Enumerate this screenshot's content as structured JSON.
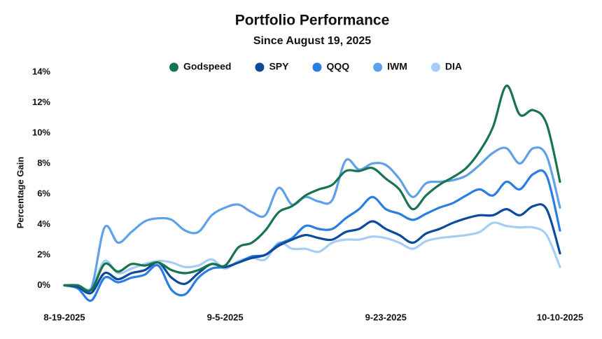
{
  "chart_data": {
    "type": "line",
    "title": "Portfolio Performance",
    "subtitle": "Since August 19, 2025",
    "y_label": "Percentage Gain",
    "categories": [
      "8-19-2025",
      null,
      null,
      null,
      null,
      null,
      null,
      null,
      null,
      null,
      null,
      null,
      "9-5-2025",
      null,
      null,
      null,
      null,
      null,
      null,
      null,
      null,
      null,
      null,
      null,
      "9-23-2025",
      null,
      null,
      null,
      null,
      null,
      null,
      null,
      null,
      null,
      null,
      null,
      null,
      "10-10-2025"
    ],
    "series": [
      {
        "name": "Godspeed",
        "color": "#17744d",
        "values": [
          0,
          0,
          -0.3,
          1.4,
          0.9,
          1.4,
          1.3,
          1.5,
          1.0,
          0.8,
          1.0,
          1.4,
          1.3,
          2.5,
          2.8,
          3.6,
          4.8,
          5.2,
          5.9,
          6.3,
          6.6,
          7.5,
          7.5,
          7.7,
          7.0,
          6.3,
          5.0,
          5.9,
          6.6,
          7.1,
          7.7,
          8.8,
          10.4,
          13.1,
          11.2,
          11.5,
          10.6,
          6.8
        ]
      },
      {
        "name": "SPY",
        "color": "#0b4a9c",
        "values": [
          0,
          -0.1,
          -0.5,
          0.8,
          0.4,
          0.8,
          1.0,
          1.5,
          0.5,
          0.1,
          0.8,
          1.4,
          1.2,
          1.5,
          1.8,
          2.0,
          2.6,
          3.0,
          3.3,
          3.1,
          3.0,
          3.5,
          3.7,
          4.2,
          3.7,
          3.3,
          2.8,
          3.4,
          3.7,
          4.1,
          4.4,
          4.6,
          4.6,
          5.0,
          4.6,
          5.2,
          5.0,
          2.1
        ]
      },
      {
        "name": "QQQ",
        "color": "#2a7de1",
        "values": [
          0,
          -0.2,
          -1.0,
          0.5,
          0.2,
          0.5,
          0.7,
          1.3,
          -0.3,
          -0.6,
          0.5,
          1.1,
          1.2,
          1.5,
          1.9,
          2.0,
          2.7,
          3.1,
          3.9,
          3.7,
          3.7,
          4.4,
          5.0,
          5.8,
          5.0,
          4.7,
          4.3,
          4.7,
          5.1,
          5.4,
          5.9,
          6.3,
          5.9,
          6.8,
          6.3,
          7.3,
          7.2,
          3.6
        ]
      },
      {
        "name": "IWM",
        "color": "#5fa1e8",
        "values": [
          0,
          -0.1,
          -0.2,
          3.8,
          2.8,
          3.5,
          4.2,
          4.4,
          4.3,
          3.6,
          3.5,
          4.6,
          5.1,
          5.3,
          4.8,
          4.6,
          6.4,
          5.3,
          5.8,
          5.5,
          5.6,
          8.2,
          7.6,
          8.0,
          7.9,
          7.0,
          5.8,
          6.7,
          6.8,
          6.9,
          7.2,
          7.9,
          8.7,
          9.0,
          8.0,
          9.0,
          8.5,
          5.1
        ]
      },
      {
        "name": "DIA",
        "color": "#a8cdf4",
        "values": [
          0,
          0,
          -0.2,
          1.6,
          0.8,
          1.1,
          1.4,
          1.6,
          1.5,
          1.2,
          1.3,
          1.7,
          1.1,
          1.6,
          1.8,
          1.7,
          2.8,
          2.4,
          2.4,
          2.2,
          2.8,
          3.0,
          3.0,
          3.2,
          3.1,
          2.8,
          2.4,
          2.9,
          3.1,
          3.2,
          3.3,
          3.5,
          4.1,
          3.9,
          3.8,
          3.8,
          3.3,
          1.2
        ]
      }
    ],
    "ylim": [
      -1.5,
      14.5
    ],
    "yticks": [
      {
        "value": 0,
        "label": "0%"
      },
      {
        "value": 2,
        "label": "2%"
      },
      {
        "value": 4,
        "label": "4%"
      },
      {
        "value": 6,
        "label": "6%"
      },
      {
        "value": 8,
        "label": "8%"
      },
      {
        "value": 10,
        "label": "10%"
      },
      {
        "value": 12,
        "label": "12%"
      },
      {
        "value": 14,
        "label": "14%"
      }
    ],
    "grid": false
  }
}
